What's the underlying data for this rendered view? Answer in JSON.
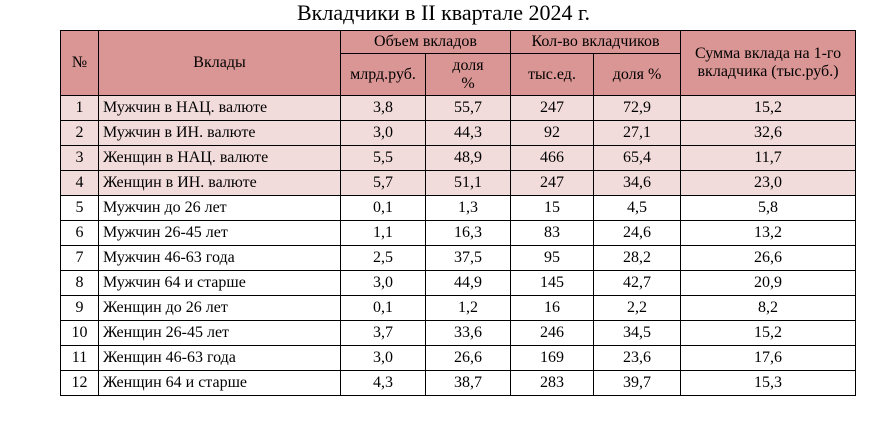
{
  "title": "Вкладчики в II квартале 2024 г.",
  "table": {
    "header": {
      "num": "№",
      "deposits": "Вклады",
      "volume": {
        "label": "Объем вкладов",
        "sub": [
          "млрд.руб.",
          "доля %"
        ]
      },
      "count": {
        "label": "Кол-во вкладчиков",
        "sub": [
          "тыс.ед.",
          "доля %"
        ]
      },
      "avg": "Сумма вклада на 1-го вкладчика (тыс.руб.)"
    },
    "rows": [
      [
        "1",
        "Мужчин в НАЦ. валюте",
        "3,8",
        "55,7",
        "247",
        "72,9",
        "15,2"
      ],
      [
        "2",
        "Мужчин в ИН. валюте",
        "3,0",
        "44,3",
        "92",
        "27,1",
        "32,6"
      ],
      [
        "3",
        "Женщин в НАЦ. валюте",
        "5,5",
        "48,9",
        "466",
        "65,4",
        "11,7"
      ],
      [
        "4",
        "Женщин в ИН. валюте",
        "5,7",
        "51,1",
        "247",
        "34,6",
        "23,0"
      ],
      [
        "5",
        "Мужчин до 26 лет",
        "0,1",
        "1,3",
        "15",
        "4,5",
        "5,8"
      ],
      [
        "6",
        "Мужчин 26-45 лет",
        "1,1",
        "16,3",
        "83",
        "24,6",
        "13,2"
      ],
      [
        "7",
        "Мужчин 46-63 года",
        "2,5",
        "37,5",
        "95",
        "28,2",
        "26,6"
      ],
      [
        "8",
        "Мужчин 64 и старше",
        "3,0",
        "44,9",
        "145",
        "42,7",
        "20,9"
      ],
      [
        "9",
        "Женщин до 26 лет",
        "0,1",
        "1,2",
        "16",
        "2,2",
        "8,2"
      ],
      [
        "10",
        "Женщин 26-45 лет",
        "3,7",
        "33,6",
        "246",
        "34,5",
        "15,2"
      ],
      [
        "11",
        "Женщин 46-63 года",
        "3,0",
        "26,6",
        "169",
        "23,6",
        "17,6"
      ],
      [
        "12",
        "Женщин 64 и старше",
        "4,3",
        "38,7",
        "283",
        "39,7",
        "15,3"
      ]
    ]
  }
}
